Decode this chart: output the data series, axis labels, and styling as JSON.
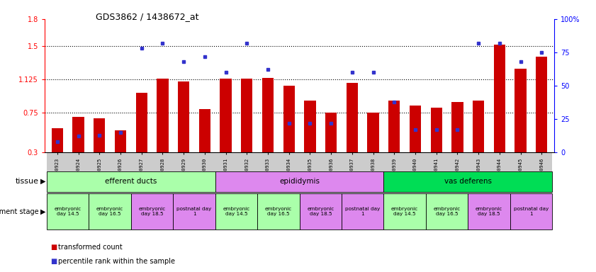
{
  "title": "GDS3862 / 1438672_at",
  "samples": [
    "GSM560923",
    "GSM560924",
    "GSM560925",
    "GSM560926",
    "GSM560927",
    "GSM560928",
    "GSM560929",
    "GSM560930",
    "GSM560931",
    "GSM560932",
    "GSM560933",
    "GSM560934",
    "GSM560935",
    "GSM560936",
    "GSM560937",
    "GSM560938",
    "GSM560939",
    "GSM560940",
    "GSM560941",
    "GSM560942",
    "GSM560943",
    "GSM560944",
    "GSM560945",
    "GSM560946"
  ],
  "bar_values": [
    0.57,
    0.7,
    0.68,
    0.55,
    0.97,
    1.13,
    1.1,
    0.79,
    1.13,
    1.13,
    1.14,
    1.05,
    0.88,
    0.75,
    1.08,
    0.75,
    0.88,
    0.83,
    0.8,
    0.87,
    0.88,
    1.51,
    1.24,
    1.38
  ],
  "blue_values_pct": [
    8,
    12,
    13,
    15,
    78,
    82,
    68,
    72,
    60,
    82,
    62,
    22,
    22,
    22,
    60,
    60,
    38,
    17,
    17,
    17,
    82,
    82,
    68,
    75
  ],
  "bar_color": "#cc0000",
  "blue_color": "#3333cc",
  "ylim_left": [
    0.3,
    1.8
  ],
  "ylim_right": [
    0,
    100
  ],
  "yticks_left": [
    0.3,
    0.75,
    1.125,
    1.5,
    1.8
  ],
  "ytick_labels_left": [
    "0.3",
    "0.75",
    "1.125",
    "1.5",
    "1.8"
  ],
  "yticks_right": [
    0,
    25,
    50,
    75,
    100
  ],
  "ytick_labels_right": [
    "0",
    "25",
    "50",
    "75",
    "100%"
  ],
  "hlines": [
    0.75,
    1.125,
    1.5
  ],
  "tissue_groups": [
    {
      "label": "efferent ducts",
      "start": 0,
      "end": 7,
      "color": "#aaffaa"
    },
    {
      "label": "epididymis",
      "start": 8,
      "end": 15,
      "color": "#dd88ee"
    },
    {
      "label": "vas deferens",
      "start": 16,
      "end": 23,
      "color": "#00dd55"
    }
  ],
  "dev_stage_groups": [
    {
      "label": "embryonic\nday 14.5",
      "start": 0,
      "end": 1,
      "color": "#aaffaa"
    },
    {
      "label": "embryonic\nday 16.5",
      "start": 2,
      "end": 3,
      "color": "#aaffaa"
    },
    {
      "label": "embryonic\nday 18.5",
      "start": 4,
      "end": 5,
      "color": "#dd88ee"
    },
    {
      "label": "postnatal day\n1",
      "start": 6,
      "end": 7,
      "color": "#dd88ee"
    },
    {
      "label": "embryonic\nday 14.5",
      "start": 8,
      "end": 9,
      "color": "#aaffaa"
    },
    {
      "label": "embryonic\nday 16.5",
      "start": 10,
      "end": 11,
      "color": "#aaffaa"
    },
    {
      "label": "embryonic\nday 18.5",
      "start": 12,
      "end": 13,
      "color": "#dd88ee"
    },
    {
      "label": "postnatal day\n1",
      "start": 14,
      "end": 15,
      "color": "#dd88ee"
    },
    {
      "label": "embryonic\nday 14.5",
      "start": 16,
      "end": 17,
      "color": "#aaffaa"
    },
    {
      "label": "embryonic\nday 16.5",
      "start": 18,
      "end": 19,
      "color": "#aaffaa"
    },
    {
      "label": "embryonic\nday 18.5",
      "start": 20,
      "end": 21,
      "color": "#dd88ee"
    },
    {
      "label": "postnatal day\n1",
      "start": 22,
      "end": 23,
      "color": "#dd88ee"
    }
  ],
  "legend_items": [
    {
      "label": "transformed count",
      "color": "#cc0000"
    },
    {
      "label": "percentile rank within the sample",
      "color": "#3333cc"
    }
  ],
  "bg_color": "#ffffff"
}
